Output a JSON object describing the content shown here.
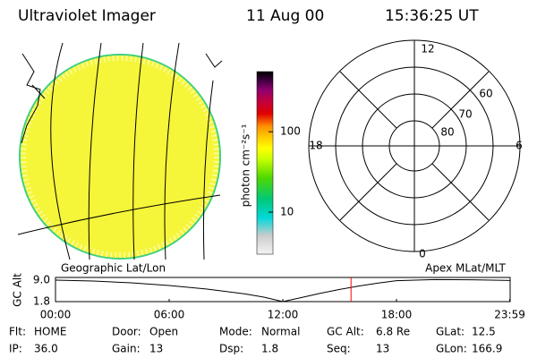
{
  "header": {
    "title": "Ultraviolet Imager",
    "date": "11 Aug 00",
    "time": "15:36:25 UT"
  },
  "map": {
    "left_label": "Geographic Lat/Lon",
    "right_label": "Apex MLat/MLT"
  },
  "colorbar": {
    "label": "photon cm⁻²s⁻¹",
    "log_scale": true,
    "lim": [
      3,
      560
    ],
    "ticks": [
      10,
      100
    ]
  },
  "polar": {
    "mlt_labels": [
      "12",
      "6",
      "18",
      "0"
    ],
    "mlat_labels": [
      "60",
      "70",
      "80"
    ]
  },
  "altitude_plot": {
    "type": "line",
    "ylabel": "GC Alt",
    "x": [
      0,
      2,
      4,
      6,
      8,
      10,
      11,
      12,
      13,
      14,
      15,
      16,
      17,
      18,
      20,
      22,
      24
    ],
    "values": [
      9.0,
      8.7,
      8.1,
      7.2,
      6.0,
      4.4,
      3.3,
      1.8,
      3.2,
      4.6,
      5.9,
      7.0,
      8.0,
      8.8,
      9.2,
      9.1,
      8.9
    ],
    "color": "#000000",
    "xlim": [
      0,
      24
    ],
    "xticks": [
      {
        "value": 0,
        "label": "00:00"
      },
      {
        "value": 6,
        "label": "06:00"
      },
      {
        "value": 12,
        "label": "12:00"
      },
      {
        "value": 18,
        "label": "18:00"
      },
      {
        "value": 23.98,
        "label": "23:59"
      }
    ],
    "ylim": [
      1.8,
      9.9
    ],
    "yticks": [
      {
        "value": 9,
        "label": "9.0"
      },
      {
        "value": 1.8,
        "label": "1.8"
      }
    ],
    "marker": 15.6,
    "marker_color": "#ff0000"
  },
  "status": [
    [
      {
        "label": "Flt:",
        "value": "HOME"
      },
      {
        "label": "Door:",
        "value": "Open"
      },
      {
        "label": "Mode:",
        "value": "Normal"
      },
      {
        "label": "GC Alt:",
        "value": "6.8 Re"
      },
      {
        "label": "GLat:",
        "value": "12.5"
      }
    ],
    [
      {
        "label": "IP:",
        "value": "36.0"
      },
      {
        "label": "Gain:",
        "value": "13"
      },
      {
        "label": "Dsp:",
        "value": "1.8"
      },
      {
        "label": "Seq:",
        "value": "13"
      },
      {
        "label": "GLon:",
        "value": "166.9"
      }
    ]
  ]
}
